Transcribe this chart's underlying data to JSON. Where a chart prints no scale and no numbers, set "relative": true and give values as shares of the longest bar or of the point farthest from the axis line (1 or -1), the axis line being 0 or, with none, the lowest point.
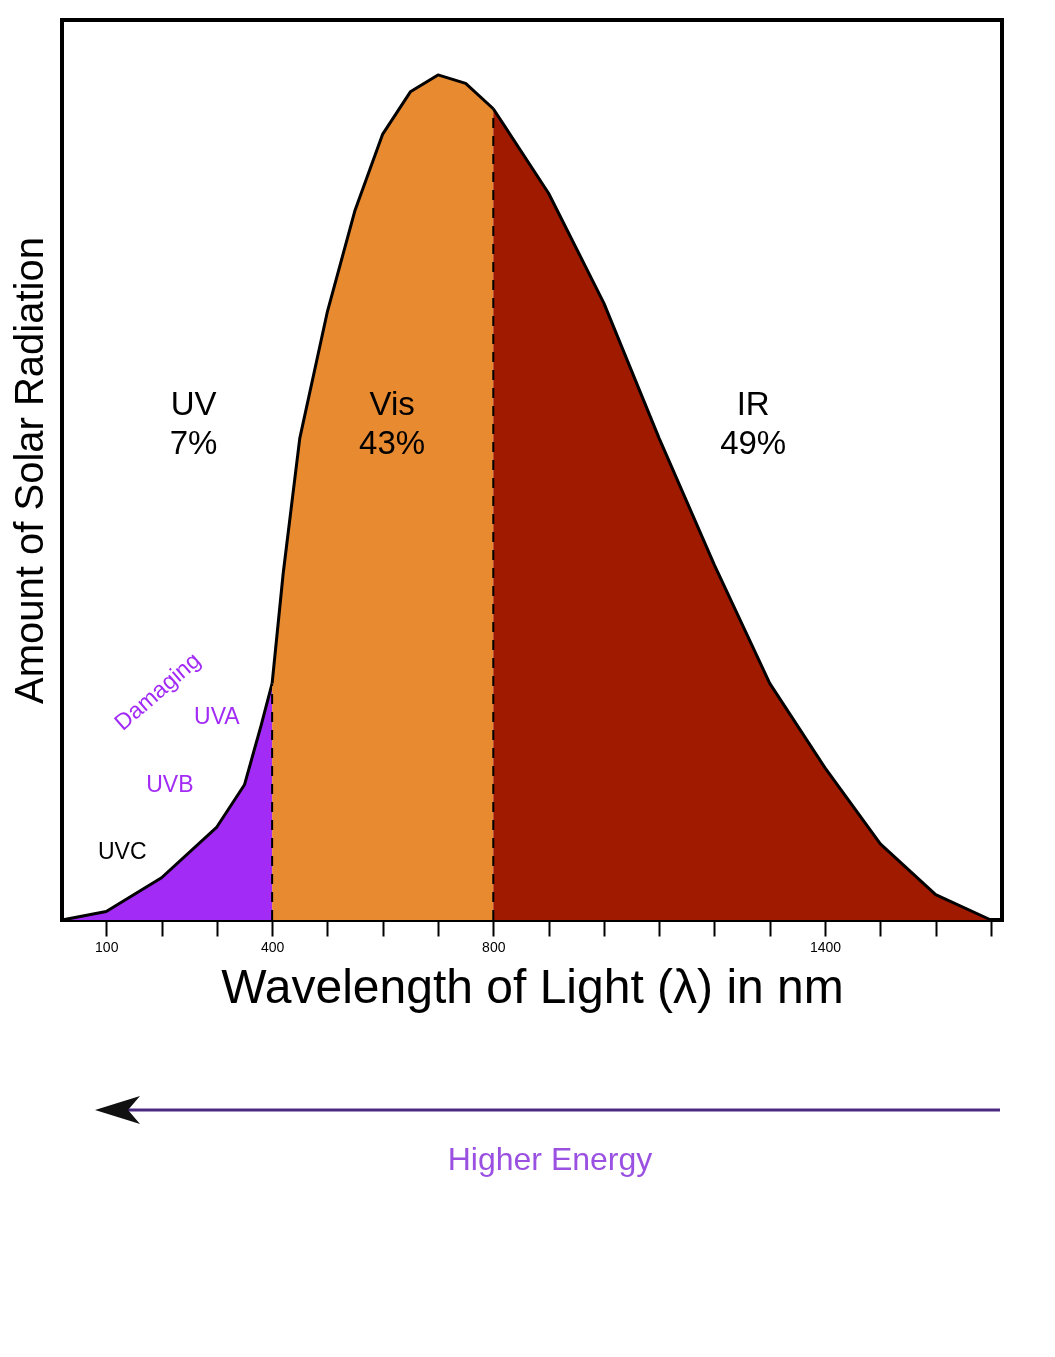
{
  "chart_data": {
    "type": "area",
    "relative": true,
    "xlabel": "Wavelength of Light (λ) in nm",
    "ylabel": "Amount of Solar Radiation",
    "xlim": [
      20,
      1720
    ],
    "xticks": [
      100,
      {
        "value": 200,
        "label": null
      },
      {
        "value": 300,
        "label": null
      },
      400,
      {
        "value": 500,
        "label": null
      },
      {
        "value": 600,
        "label": null
      },
      {
        "value": 700,
        "label": null
      },
      800,
      {
        "value": 900,
        "label": null
      },
      {
        "value": 1000,
        "label": null
      },
      {
        "value": 1100,
        "label": null
      },
      {
        "value": 1200,
        "label": null
      },
      {
        "value": 1300,
        "label": null
      },
      1400,
      {
        "value": 1500,
        "label": null
      },
      {
        "value": 1600,
        "label": null
      },
      {
        "value": 1700,
        "label": null
      }
    ],
    "tick_labels": "x",
    "grid": false,
    "series": [
      {
        "color": "#a22cf5",
        "x": [
          20,
          100,
          200,
          300,
          350,
          380,
          400
        ],
        "values": [
          0,
          0.01,
          0.05,
          0.11,
          0.16,
          0.23,
          0.28
        ]
      },
      {
        "color": "#e88a30",
        "x": [
          400,
          420,
          450,
          500,
          550,
          600,
          650,
          700,
          750,
          800
        ],
        "values": [
          0.28,
          0.41,
          0.57,
          0.72,
          0.84,
          0.93,
          0.98,
          1,
          0.99,
          0.96
        ]
      },
      {
        "color": "#a01a00",
        "x": [
          800,
          900,
          1000,
          1100,
          1200,
          1300,
          1400,
          1500,
          1600,
          1700
        ],
        "values": [
          0.96,
          0.86,
          0.73,
          0.57,
          0.42,
          0.28,
          0.18,
          0.09,
          0.03,
          0
        ]
      }
    ],
    "ref_lines": [
      {
        "axis": "x",
        "value": 400,
        "line_style": "dashed"
      },
      {
        "axis": "x",
        "value": 800,
        "line_style": "dashed"
      }
    ],
    "annotations": [
      "UV\n7%",
      "Vis\n43%",
      "IR\n49%",
      "UVA",
      "UVB",
      "UVC",
      "Damaging",
      "Higher Energy"
    ]
  }
}
